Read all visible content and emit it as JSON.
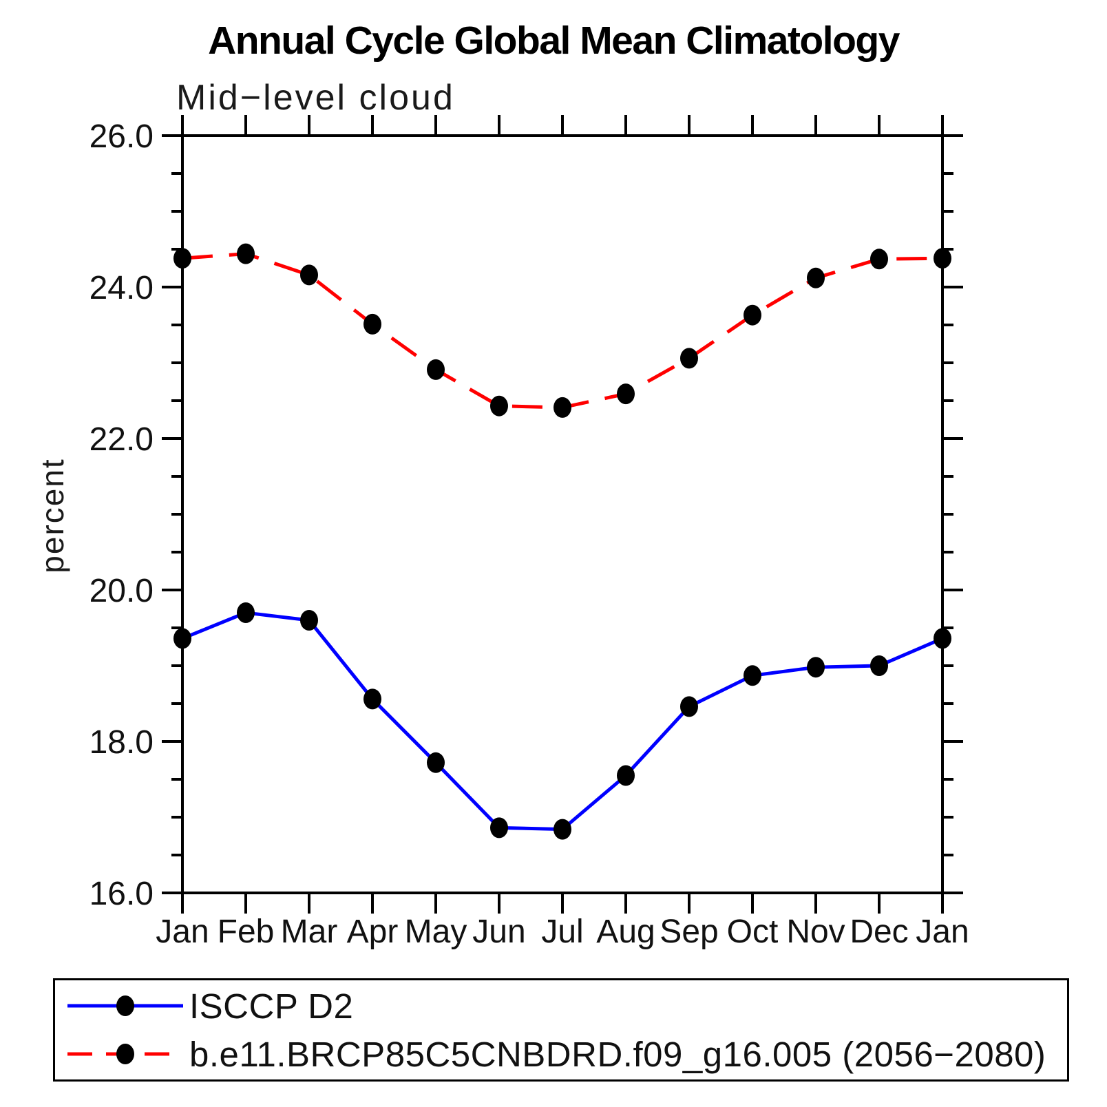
{
  "chart_data": {
    "type": "line",
    "title": "Annual Cycle Global Mean Climatology",
    "subtitle": "Mid−level cloud",
    "ylabel": "percent",
    "categories": [
      "Jan",
      "Feb",
      "Mar",
      "Apr",
      "May",
      "Jun",
      "Jul",
      "Aug",
      "Sep",
      "Oct",
      "Nov",
      "Dec",
      "Jan"
    ],
    "ylim": [
      16.0,
      26.0
    ],
    "ytick_values": [
      16,
      18,
      20,
      22,
      24,
      26
    ],
    "ytick_labels": [
      "16.0",
      "18.0",
      "20.0",
      "22.0",
      "24.0",
      "26.0"
    ],
    "ytick_minor_step": 0.5,
    "grid": false,
    "legend_position": "bottom-left-box",
    "background": "#ffffff",
    "axis_color": "#000000",
    "marker_color": "#000000",
    "series": [
      {
        "name": "ISCCP D2",
        "color": "#0000ff",
        "line_style": "solid",
        "marker": "filled-circle",
        "values": [
          19.36,
          19.7,
          19.6,
          18.56,
          17.72,
          16.86,
          16.84,
          17.55,
          18.46,
          18.87,
          18.98,
          19.0,
          19.36
        ]
      },
      {
        "name": "b.e11.BRCP85C5CNBDRD.f09_g16.005 (2056−2080)",
        "color": "#ff0000",
        "line_style": "dashed",
        "marker": "filled-circle",
        "values": [
          24.38,
          24.44,
          24.16,
          23.51,
          22.91,
          22.43,
          22.41,
          22.59,
          23.06,
          23.63,
          24.12,
          24.37,
          24.38
        ]
      }
    ]
  }
}
